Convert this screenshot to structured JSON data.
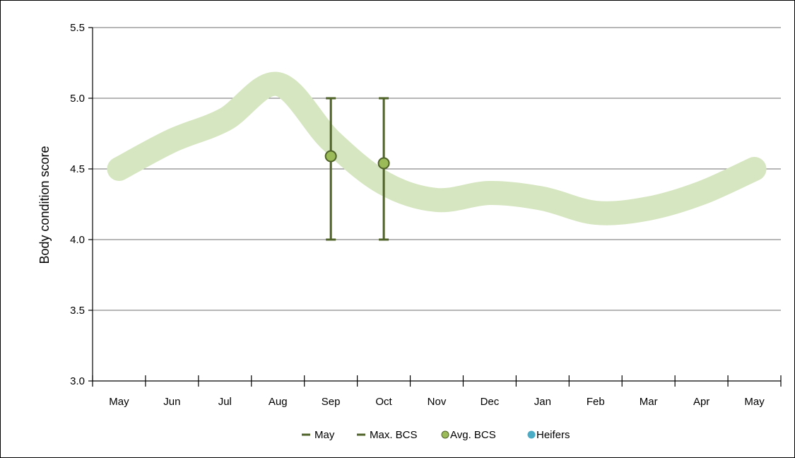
{
  "chart_data": {
    "type": "line",
    "title": "",
    "xlabel": "",
    "ylabel": "Body condition score",
    "ylim": [
      3.0,
      5.5
    ],
    "yticks": [
      "3.0",
      "3.5",
      "4.0",
      "4.5",
      "5.0",
      "5.5"
    ],
    "grid": true,
    "legend_position": "bottom",
    "categories": [
      "May",
      "Jun",
      "Jul",
      "Aug",
      "Sep",
      "Oct",
      "Nov",
      "Dec",
      "Jan",
      "Feb",
      "Mar",
      "Apr",
      "May"
    ],
    "target_band": {
      "values": [
        4.5,
        4.7,
        4.85,
        5.1,
        4.7,
        4.4,
        4.28,
        4.33,
        4.29,
        4.19,
        4.22,
        4.33,
        4.5
      ],
      "color": "#d6e6c0"
    },
    "series": [
      {
        "name": "May",
        "type": "error_bar",
        "color": "#4f6228"
      },
      {
        "name": "Max. BCS",
        "type": "error_bar",
        "color": "#4f6228",
        "points": [
          {
            "x": "Sep",
            "low": 4.0,
            "high": 5.0
          },
          {
            "x": "Oct",
            "low": 4.0,
            "high": 5.0
          }
        ]
      },
      {
        "name": "Avg. BCS",
        "type": "marker",
        "color": "#9bbb59",
        "edge": "#4f6228",
        "points": [
          {
            "x": "Sep",
            "y": 4.59
          },
          {
            "x": "Oct",
            "y": 4.54
          }
        ]
      },
      {
        "name": "Heifers",
        "type": "marker",
        "color": "#4bacc6",
        "points": []
      }
    ]
  }
}
